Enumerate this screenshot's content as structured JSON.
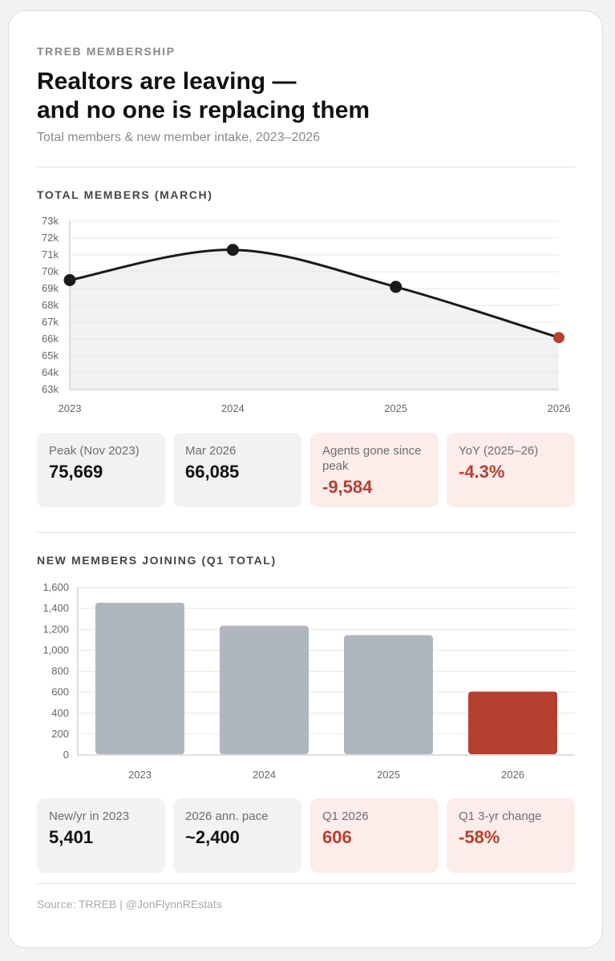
{
  "header": {
    "eyebrow": "TRREB MEMBERSHIP",
    "title_line1": "Realtors are leaving —",
    "title_line2": "and no one is replacing them",
    "subtitle": "Total members & new member intake, 2023–2026"
  },
  "colors": {
    "line": "#1a1a1a",
    "point": "#1a1a1a",
    "highlight": "#b5402f",
    "bar": "#b0b6bd",
    "area": "#f2f2f2",
    "grid": "#e6e6e6"
  },
  "chart_data": [
    {
      "type": "line",
      "title": "TOTAL MEMBERS (MARCH)",
      "x": [
        "2023",
        "2024",
        "2025",
        "2026"
      ],
      "values": [
        69.5,
        71.3,
        69.1,
        66.085
      ],
      "ylim": [
        63,
        73
      ],
      "yticks": [
        "63k",
        "64k",
        "65k",
        "66k",
        "67k",
        "68k",
        "69k",
        "70k",
        "71k",
        "72k",
        "73k"
      ],
      "grid": true,
      "highlight_last": true
    },
    {
      "type": "bar",
      "title": "NEW MEMBERS JOINING (Q1 TOTAL)",
      "categories": [
        "2023",
        "2024",
        "2025",
        "2026"
      ],
      "values": [
        1455,
        1235,
        1145,
        606
      ],
      "ylim": [
        0,
        1600
      ],
      "yticks": [
        "0",
        "200",
        "400",
        "600",
        "800",
        "1,000",
        "1,200",
        "1,400",
        "1,600"
      ],
      "grid": true,
      "highlight_last": true
    }
  ],
  "stats_members": [
    {
      "label": "Peak (Nov 2023)",
      "value": "75,669",
      "tone": "neutral"
    },
    {
      "label": "Mar 2026",
      "value": "66,085",
      "tone": "neutral"
    },
    {
      "label": "Agents gone since peak",
      "value": "-9,584",
      "tone": "alert"
    },
    {
      "label": "YoY (2025–26)",
      "value": "-4.3%",
      "tone": "alert"
    }
  ],
  "stats_new": [
    {
      "label": "New/yr in 2023",
      "value": "5,401",
      "tone": "neutral"
    },
    {
      "label": "2026 ann. pace",
      "value": "~2,400",
      "tone": "neutral"
    },
    {
      "label": "Q1 2026",
      "value": "606",
      "tone": "alert"
    },
    {
      "label": "Q1 3-yr change",
      "value": "-58%",
      "tone": "alert"
    }
  ],
  "footer": {
    "source": "Source: TRREB  |  @JonFlynnREstats"
  }
}
